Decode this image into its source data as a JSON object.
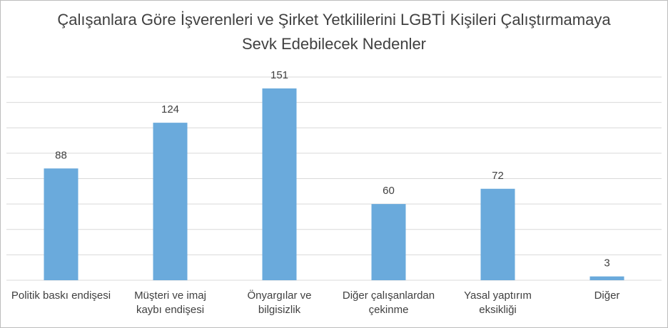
{
  "chart_data": {
    "type": "bar",
    "title": "Çalışanlara Göre İşverenleri ve Şirket Yetkililerini LGBTİ Kişileri Çalıştırmamaya Sevk Edebilecek Nedenler",
    "categories": [
      "Politik baskı endişesi",
      "Müşteri ve imaj kaybı endişesi",
      "Önyargılar ve bilgisizlik",
      "Diğer çalışanlardan çekinme",
      "Yasal yaptırım eksikliği",
      "Diğer"
    ],
    "values": [
      88,
      124,
      151,
      60,
      72,
      3
    ],
    "color": "#6aaadc",
    "ylim": [
      0,
      160
    ],
    "yticks": [
      0,
      20,
      40,
      60,
      80,
      100,
      120,
      140,
      160
    ],
    "grid": true
  }
}
